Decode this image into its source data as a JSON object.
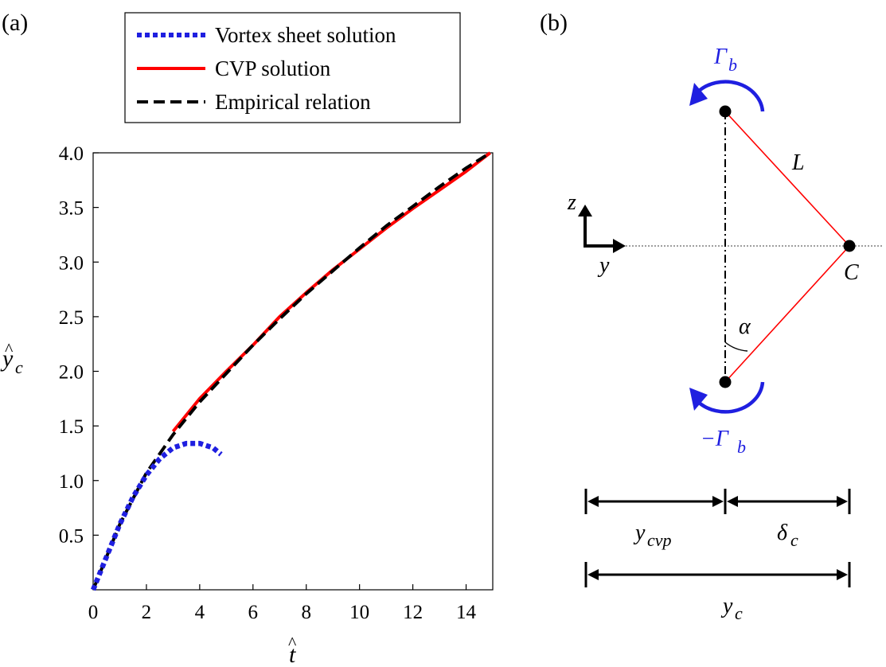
{
  "chart_data": [
    {
      "type": "line",
      "panel_label": "(a)",
      "xlabel": "t̂",
      "ylabel": "ŷ_c",
      "xlim": [
        0,
        15
      ],
      "ylim": [
        0,
        4.0
      ],
      "x_ticks": [
        0,
        2,
        4,
        6,
        8,
        10,
        12,
        14
      ],
      "y_ticks": [
        0.5,
        1.0,
        1.5,
        2.0,
        2.5,
        3.0,
        3.5,
        4.0
      ],
      "x_tick_labels": [
        "0",
        "2",
        "4",
        "6",
        "8",
        "10",
        "12",
        "14"
      ],
      "y_tick_labels": [
        "0.5",
        "1.0",
        "1.5",
        "2.0",
        "2.5",
        "3.0",
        "3.5",
        "4.0"
      ],
      "grid": false,
      "legend_position": "above plot",
      "series": [
        {
          "name": "Vortex sheet solution",
          "color": "#1f1fe0",
          "dash": "dotted",
          "x": [
            0.0,
            0.5,
            1.0,
            1.5,
            2.0,
            2.5,
            3.0,
            3.5,
            4.0,
            4.5,
            4.8
          ],
          "y": [
            0.0,
            0.3,
            0.6,
            0.85,
            1.05,
            1.2,
            1.3,
            1.34,
            1.34,
            1.3,
            1.24
          ]
        },
        {
          "name": "CVP solution",
          "color": "#ff0000",
          "dash": "solid",
          "x": [
            3.0,
            4.0,
            5.0,
            6.0,
            7.0,
            8.0,
            9.0,
            10.0,
            11.0,
            12.0,
            13.0,
            14.0,
            14.9
          ],
          "y": [
            1.45,
            1.75,
            2.0,
            2.24,
            2.5,
            2.72,
            2.93,
            3.12,
            3.31,
            3.49,
            3.66,
            3.83,
            4.0
          ]
        },
        {
          "name": "Empirical relation",
          "color": "#000000",
          "dash": "dashed",
          "x": [
            0.0,
            1.0,
            2.0,
            3.0,
            4.0,
            5.0,
            6.0,
            7.0,
            8.0,
            9.0,
            10.0,
            11.0,
            12.0,
            13.0,
            14.0,
            14.9
          ],
          "y": [
            0.0,
            0.6,
            1.07,
            1.42,
            1.72,
            1.98,
            2.24,
            2.48,
            2.71,
            2.92,
            3.13,
            3.33,
            3.51,
            3.69,
            3.86,
            4.0
          ]
        }
      ]
    },
    {
      "type": "diagram",
      "panel_label": "(b)",
      "labels": {
        "gamma_top": "Γb",
        "gamma_bottom": "−Γb",
        "length": "L",
        "point": "C",
        "angle": "α",
        "axis_z": "z",
        "axis_y": "y",
        "y_cvp": "ycvp",
        "delta_c": "δc",
        "y_c": "yc"
      },
      "colors": {
        "vortex": "#1f1fe0",
        "line": "#ff0000"
      }
    }
  ]
}
